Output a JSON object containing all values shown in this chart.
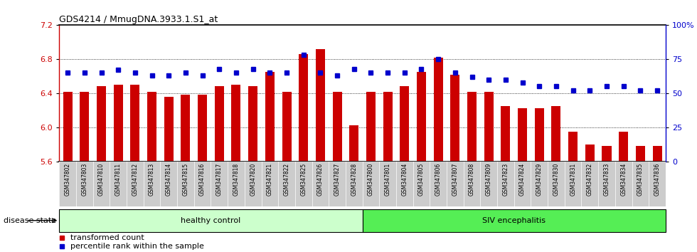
{
  "title": "GDS4214 / MmugDNA.3933.1.S1_at",
  "samples": [
    "GSM347802",
    "GSM347803",
    "GSM347810",
    "GSM347811",
    "GSM347812",
    "GSM347813",
    "GSM347814",
    "GSM347815",
    "GSM347816",
    "GSM347817",
    "GSM347818",
    "GSM347820",
    "GSM347821",
    "GSM347822",
    "GSM347825",
    "GSM347826",
    "GSM347827",
    "GSM347828",
    "GSM347800",
    "GSM347801",
    "GSM347804",
    "GSM347805",
    "GSM347806",
    "GSM347807",
    "GSM347808",
    "GSM347809",
    "GSM347823",
    "GSM347824",
    "GSM347829",
    "GSM347830",
    "GSM347831",
    "GSM347832",
    "GSM347833",
    "GSM347834",
    "GSM347835",
    "GSM347836"
  ],
  "bar_values": [
    6.42,
    6.42,
    6.48,
    6.5,
    6.5,
    6.42,
    6.36,
    6.38,
    6.38,
    6.48,
    6.5,
    6.48,
    6.65,
    6.42,
    6.86,
    6.92,
    6.42,
    6.02,
    6.42,
    6.42,
    6.48,
    6.65,
    6.82,
    6.62,
    6.42,
    6.42,
    6.25,
    6.22,
    6.22,
    6.25,
    5.95,
    5.8,
    5.78,
    5.95,
    5.78,
    5.78
  ],
  "percentile_values": [
    65,
    65,
    65,
    67,
    65,
    63,
    63,
    65,
    63,
    68,
    65,
    68,
    65,
    65,
    78,
    65,
    63,
    68,
    65,
    65,
    65,
    68,
    75,
    65,
    62,
    60,
    60,
    58,
    55,
    55,
    52,
    52,
    55,
    55,
    52,
    52
  ],
  "ylim_left": [
    5.6,
    7.2
  ],
  "ylim_right": [
    0,
    100
  ],
  "yticks_left": [
    5.6,
    6.0,
    6.4,
    6.8,
    7.2
  ],
  "yticks_right": [
    0,
    25,
    50,
    75,
    100
  ],
  "bar_color": "#cc0000",
  "dot_color": "#0000cc",
  "healthy_count": 18,
  "healthy_label": "healthy control",
  "siv_label": "SIV encephalitis",
  "healthy_color": "#ccffcc",
  "siv_color": "#55ee55",
  "disease_state_label": "disease state",
  "legend_bar_label": "transformed count",
  "legend_dot_label": "percentile rank within the sample",
  "background_color": "#ffffff",
  "xlabel_bg": "#cccccc"
}
